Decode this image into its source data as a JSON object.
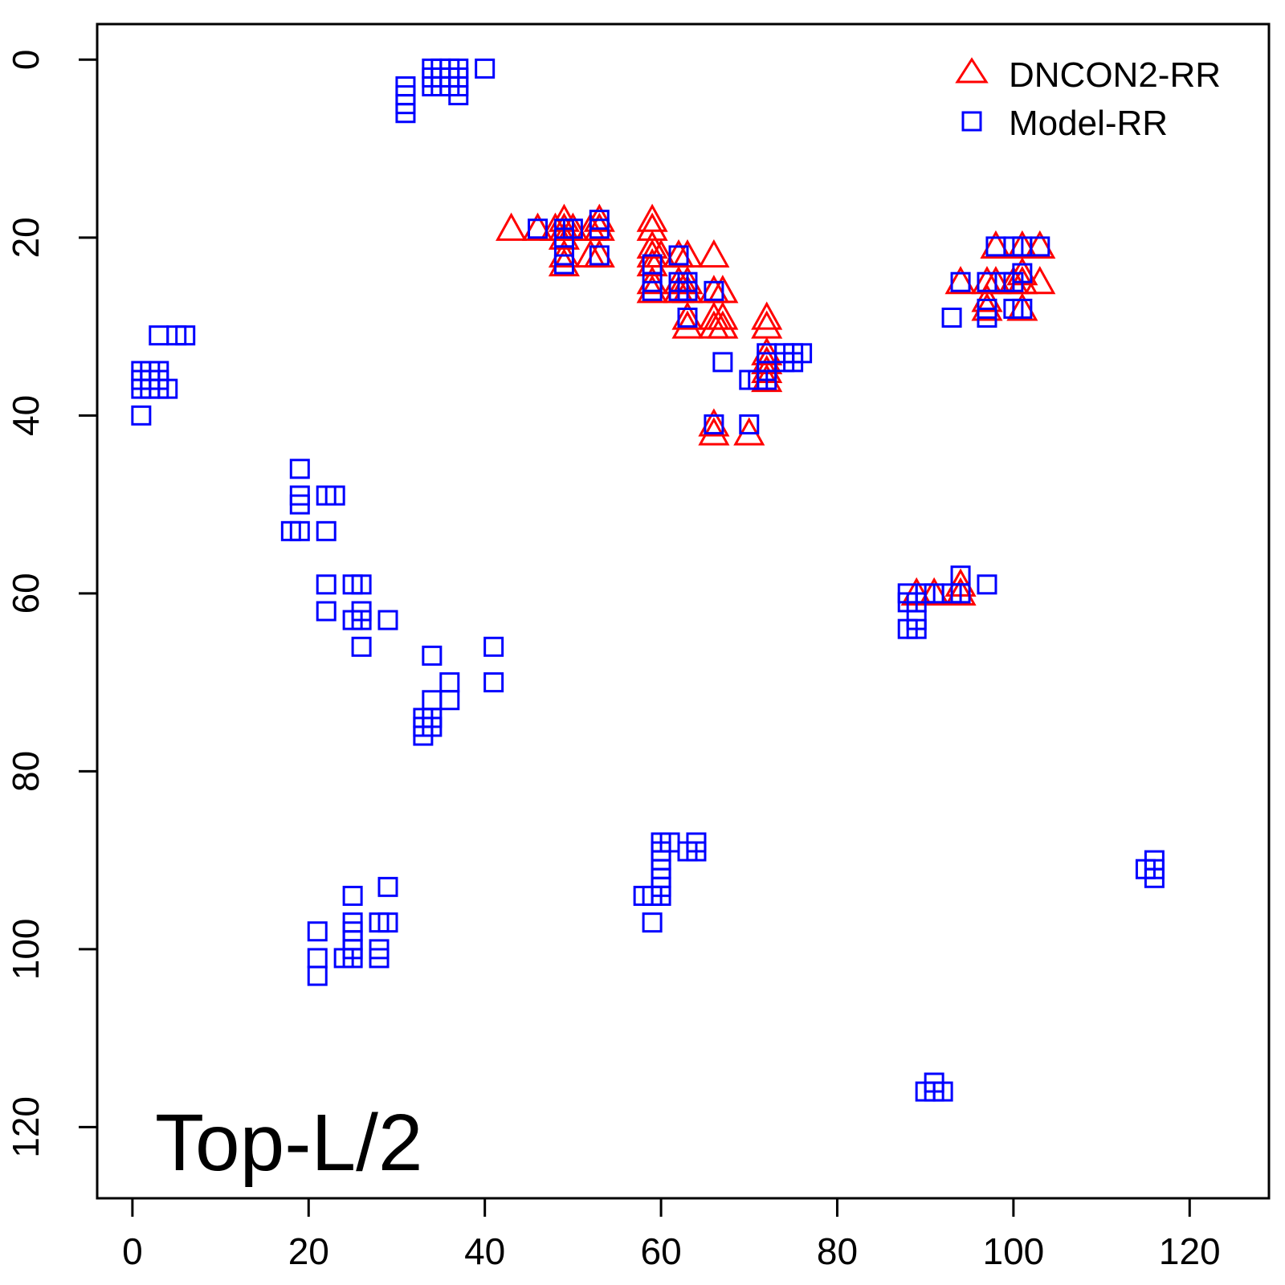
{
  "chart_data": {
    "type": "scatter",
    "annotation": "Top-L/2",
    "xlim": [
      -4,
      129
    ],
    "ylim": [
      -4,
      128
    ],
    "y_reversed": true,
    "x_ticks": [
      0,
      20,
      40,
      60,
      80,
      100,
      120
    ],
    "y_ticks": [
      0,
      20,
      40,
      60,
      80,
      100,
      120
    ],
    "legend_position": "top-right",
    "series": [
      {
        "name": "DNCON2-RR",
        "marker": "triangle",
        "color": "#ff0000",
        "points": [
          [
            43,
            19
          ],
          [
            46,
            19
          ],
          [
            48,
            19
          ],
          [
            49,
            18
          ],
          [
            49,
            19
          ],
          [
            49,
            20
          ],
          [
            49,
            22
          ],
          [
            49,
            23
          ],
          [
            50,
            19
          ],
          [
            52,
            19
          ],
          [
            52,
            22
          ],
          [
            53,
            18
          ],
          [
            53,
            19
          ],
          [
            53,
            22
          ],
          [
            59,
            18
          ],
          [
            59,
            19
          ],
          [
            59,
            21
          ],
          [
            59,
            22
          ],
          [
            59,
            23
          ],
          [
            59,
            25
          ],
          [
            59,
            26
          ],
          [
            60,
            22
          ],
          [
            62,
            22
          ],
          [
            62,
            25
          ],
          [
            62,
            26
          ],
          [
            63,
            22
          ],
          [
            63,
            25
          ],
          [
            63,
            26
          ],
          [
            63,
            29
          ],
          [
            63,
            30
          ],
          [
            66,
            22
          ],
          [
            66,
            26
          ],
          [
            66,
            29
          ],
          [
            66,
            30
          ],
          [
            66,
            41
          ],
          [
            66,
            42
          ],
          [
            67,
            26
          ],
          [
            67,
            29
          ],
          [
            67,
            30
          ],
          [
            70,
            42
          ],
          [
            72,
            29
          ],
          [
            72,
            30
          ],
          [
            72,
            33
          ],
          [
            72,
            34
          ],
          [
            72,
            35
          ],
          [
            72,
            36
          ],
          [
            89,
            60
          ],
          [
            91,
            60
          ],
          [
            94,
            25
          ],
          [
            94,
            59
          ],
          [
            94,
            60
          ],
          [
            97,
            25
          ],
          [
            97,
            27
          ],
          [
            97,
            28
          ],
          [
            98,
            21
          ],
          [
            98,
            25
          ],
          [
            100,
            25
          ],
          [
            101,
            21
          ],
          [
            101,
            24
          ],
          [
            101,
            25
          ],
          [
            101,
            28
          ],
          [
            103,
            21
          ],
          [
            103,
            25
          ]
        ]
      },
      {
        "name": "Model-RR",
        "marker": "square",
        "color": "#0000ff",
        "points": [
          [
            1,
            35
          ],
          [
            1,
            36
          ],
          [
            1,
            37
          ],
          [
            1,
            40
          ],
          [
            2,
            35
          ],
          [
            2,
            36
          ],
          [
            2,
            37
          ],
          [
            3,
            31
          ],
          [
            3,
            35
          ],
          [
            3,
            36
          ],
          [
            3,
            37
          ],
          [
            4,
            37
          ],
          [
            5,
            31
          ],
          [
            6,
            31
          ],
          [
            19,
            46
          ],
          [
            19,
            49
          ],
          [
            19,
            50
          ],
          [
            18,
            53
          ],
          [
            19,
            53
          ],
          [
            22,
            49
          ],
          [
            23,
            49
          ],
          [
            22,
            53
          ],
          [
            22,
            59
          ],
          [
            22,
            62
          ],
          [
            25,
            59
          ],
          [
            26,
            59
          ],
          [
            25,
            63
          ],
          [
            26,
            62
          ],
          [
            26,
            63
          ],
          [
            26,
            66
          ],
          [
            29,
            63
          ],
          [
            31,
            3
          ],
          [
            31,
            4
          ],
          [
            31,
            5
          ],
          [
            31,
            6
          ],
          [
            34,
            1
          ],
          [
            34,
            2
          ],
          [
            34,
            3
          ],
          [
            35,
            1
          ],
          [
            35,
            2
          ],
          [
            35,
            3
          ],
          [
            36,
            1
          ],
          [
            36,
            2
          ],
          [
            36,
            3
          ],
          [
            37,
            1
          ],
          [
            37,
            2
          ],
          [
            37,
            3
          ],
          [
            37,
            4
          ],
          [
            40,
            1
          ],
          [
            34,
            67
          ],
          [
            34,
            72
          ],
          [
            36,
            70
          ],
          [
            36,
            72
          ],
          [
            41,
            66
          ],
          [
            41,
            70
          ],
          [
            33,
            74
          ],
          [
            33,
            75
          ],
          [
            33,
            76
          ],
          [
            34,
            74
          ],
          [
            34,
            75
          ],
          [
            21,
            98
          ],
          [
            21,
            101
          ],
          [
            21,
            103
          ],
          [
            24,
            101
          ],
          [
            25,
            94
          ],
          [
            25,
            97
          ],
          [
            25,
            98
          ],
          [
            25,
            99
          ],
          [
            25,
            100
          ],
          [
            25,
            101
          ],
          [
            28,
            97
          ],
          [
            28,
            100
          ],
          [
            28,
            101
          ],
          [
            29,
            93
          ],
          [
            29,
            97
          ],
          [
            58,
            94
          ],
          [
            59,
            94
          ],
          [
            59,
            97
          ],
          [
            60,
            88
          ],
          [
            60,
            89
          ],
          [
            60,
            90
          ],
          [
            60,
            91
          ],
          [
            60,
            92
          ],
          [
            60,
            93
          ],
          [
            60,
            94
          ],
          [
            61,
            88
          ],
          [
            63,
            89
          ],
          [
            64,
            88
          ],
          [
            64,
            89
          ],
          [
            46,
            19
          ],
          [
            49,
            19
          ],
          [
            49,
            20
          ],
          [
            49,
            22
          ],
          [
            49,
            23
          ],
          [
            50,
            19
          ],
          [
            53,
            18
          ],
          [
            53,
            19
          ],
          [
            53,
            22
          ],
          [
            59,
            23
          ],
          [
            59,
            25
          ],
          [
            59,
            26
          ],
          [
            62,
            22
          ],
          [
            62,
            25
          ],
          [
            62,
            26
          ],
          [
            63,
            25
          ],
          [
            63,
            26
          ],
          [
            63,
            29
          ],
          [
            66,
            26
          ],
          [
            66,
            41
          ],
          [
            67,
            34
          ],
          [
            70,
            36
          ],
          [
            70,
            41
          ],
          [
            71,
            36
          ],
          [
            72,
            33
          ],
          [
            72,
            34
          ],
          [
            72,
            35
          ],
          [
            72,
            36
          ],
          [
            74,
            33
          ],
          [
            74,
            34
          ],
          [
            75,
            33
          ],
          [
            75,
            34
          ],
          [
            76,
            33
          ],
          [
            88,
            60
          ],
          [
            88,
            61
          ],
          [
            88,
            64
          ],
          [
            89,
            61
          ],
          [
            89,
            63
          ],
          [
            89,
            64
          ],
          [
            90,
            60
          ],
          [
            91,
            60
          ],
          [
            93,
            60
          ],
          [
            94,
            58
          ],
          [
            94,
            60
          ],
          [
            97,
            59
          ],
          [
            93,
            29
          ],
          [
            94,
            25
          ],
          [
            97,
            25
          ],
          [
            97,
            28
          ],
          [
            97,
            29
          ],
          [
            98,
            21
          ],
          [
            99,
            25
          ],
          [
            100,
            21
          ],
          [
            100,
            25
          ],
          [
            100,
            28
          ],
          [
            101,
            21
          ],
          [
            101,
            24
          ],
          [
            101,
            28
          ],
          [
            103,
            21
          ],
          [
            90,
            116
          ],
          [
            91,
            115
          ],
          [
            91,
            116
          ],
          [
            92,
            116
          ],
          [
            115,
            91
          ],
          [
            116,
            90
          ],
          [
            116,
            91
          ],
          [
            116,
            92
          ]
        ]
      }
    ]
  }
}
